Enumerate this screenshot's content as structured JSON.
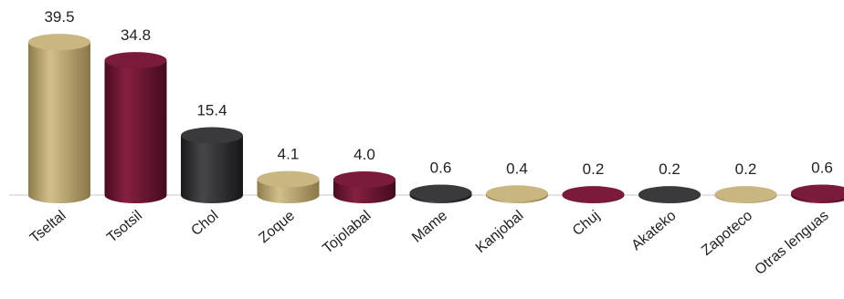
{
  "chart_data": {
    "type": "bar",
    "categories": [
      "Tseltal",
      "Tsotsil",
      "Chol",
      "Zoque",
      "Tojolabal",
      "Mame",
      "Kanjobal",
      "Chuj",
      "Akateko",
      "Zapoteco",
      "Otras lenguas"
    ],
    "values": [
      39.5,
      34.8,
      15.4,
      4.1,
      4.0,
      0.6,
      0.4,
      0.2,
      0.2,
      0.2,
      0.6
    ],
    "value_labels": [
      "39.5",
      "34.8",
      "15.4",
      "4.1",
      "4.0",
      "0.6",
      "0.4",
      "0.2",
      "0.2",
      "0.2",
      "0.6"
    ],
    "bar_style": "3d-cylinder",
    "ylim": [
      0,
      40
    ],
    "grid": false,
    "legend": "none",
    "colors": [
      "#b8a36e",
      "#6a1434",
      "#2d2d2f",
      "#b8a36e",
      "#6a1434",
      "#2d2d2f",
      "#b8a36e",
      "#6a1434",
      "#2d2d2f",
      "#b8a36e",
      "#6a1434"
    ]
  }
}
